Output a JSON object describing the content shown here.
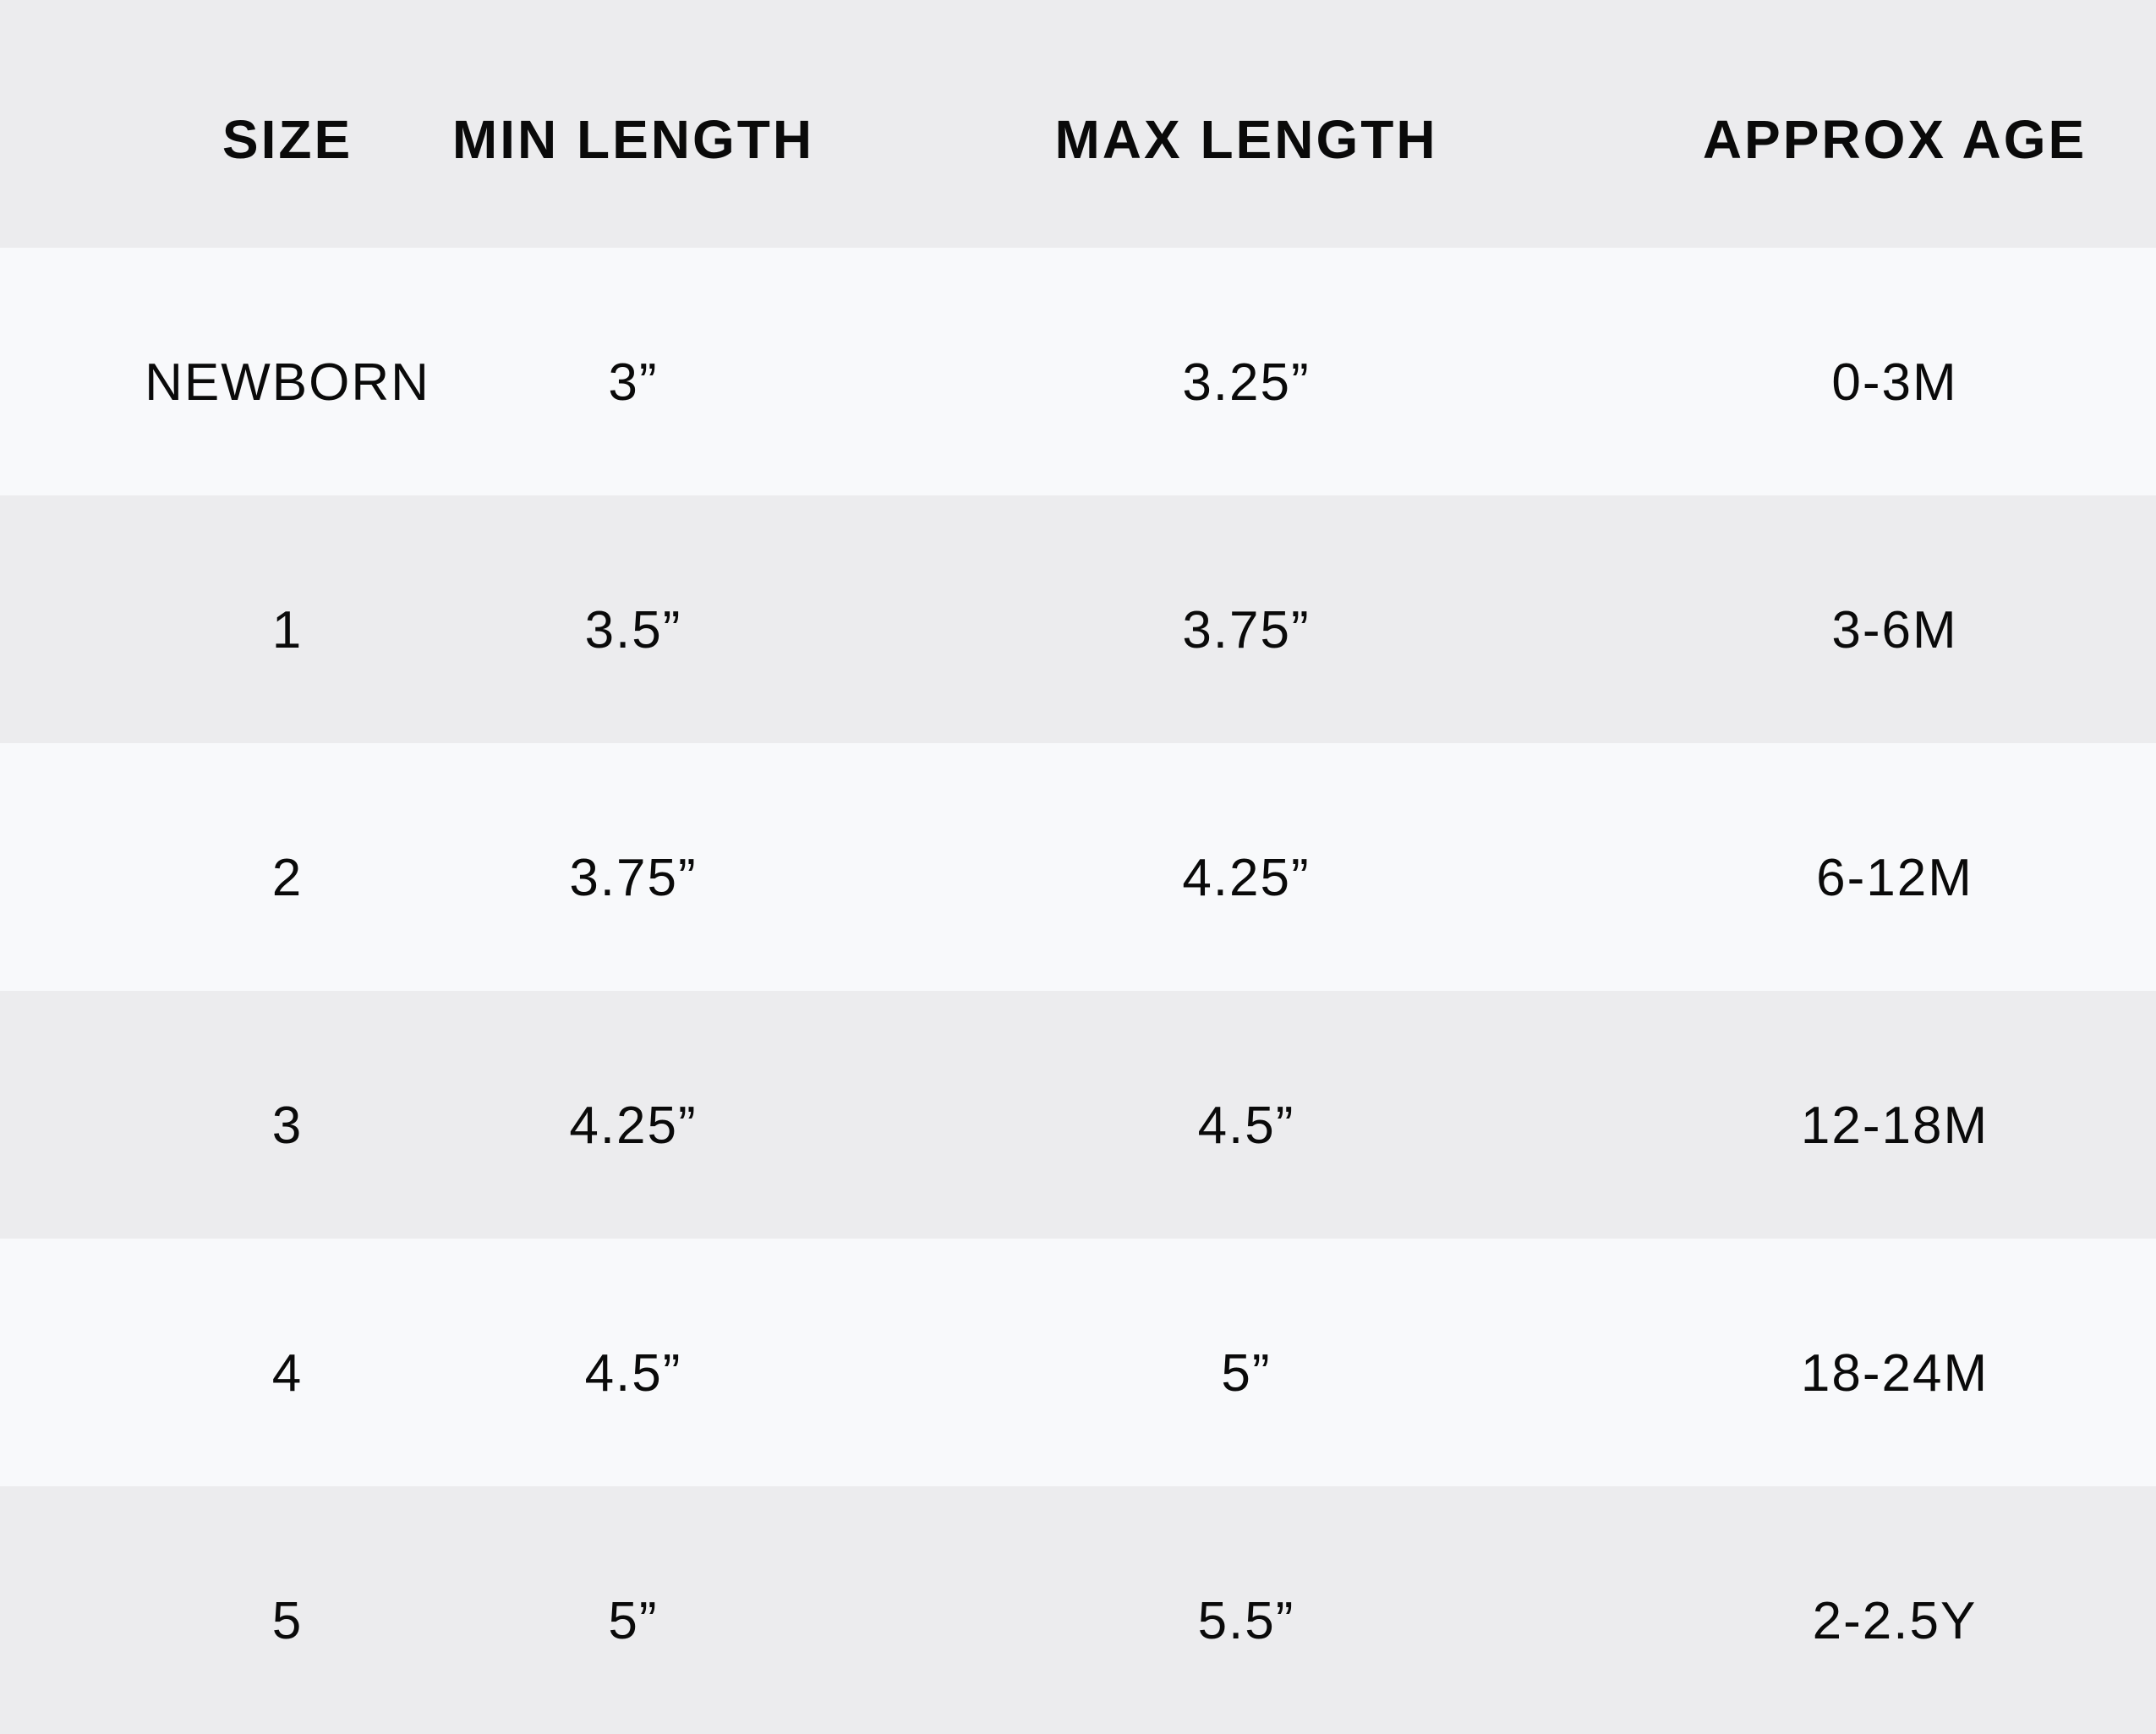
{
  "table": {
    "headers": [
      "SIZE",
      "MIN LENGTH",
      "MAX LENGTH",
      "APPROX AGE"
    ],
    "rows": [
      [
        "NEWBORN",
        "3”",
        "3.25”",
        "0-3M"
      ],
      [
        "1",
        "3.5”",
        "3.75”",
        "3-6M"
      ],
      [
        "2",
        "3.75”",
        "4.25”",
        "6-12M"
      ],
      [
        "3",
        "4.25”",
        "4.5”",
        "12-18M"
      ],
      [
        "4",
        "4.5”",
        "5”",
        "18-24M"
      ],
      [
        "5",
        "5”",
        "5.5”",
        "2-2.5Y"
      ]
    ]
  },
  "colors": {
    "header_bg": "#ececee",
    "row_light": "#f8f9fb",
    "row_dark": "#ececee",
    "text": "#0a0a0a"
  }
}
